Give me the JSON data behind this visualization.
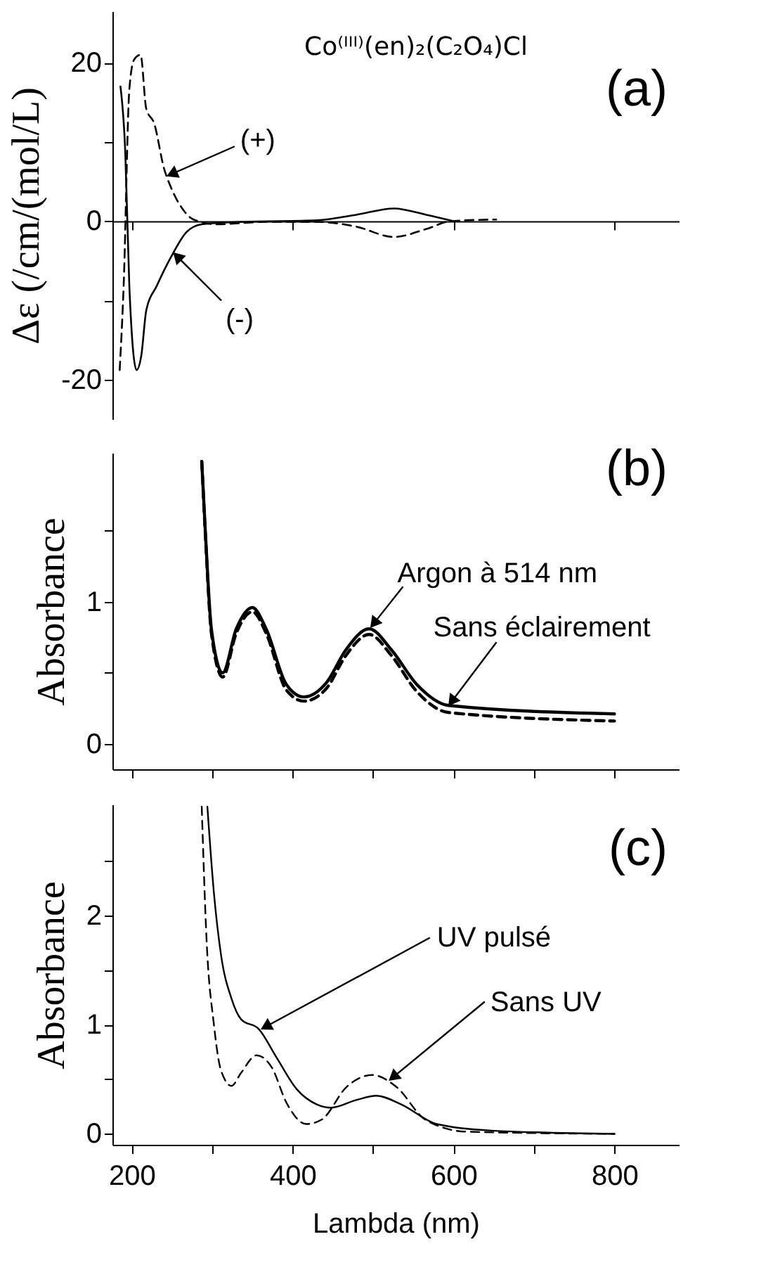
{
  "chart_data": [
    {
      "type": "line",
      "title": "Co⁽ᴵᴵᴵ⁾(en)₂(C₂O₄)Cl",
      "ylabel": "Δε (/cm/(mol/L)",
      "xlim": [
        176,
        880
      ],
      "ylim": [
        -25,
        26.5
      ],
      "xticks": [
        200,
        400,
        600,
        800
      ],
      "yticks": [
        -20,
        {
          "value": -10,
          "label": null
        },
        0,
        {
          "value": 10,
          "label": null
        },
        20
      ],
      "tick_labels": "y",
      "series": [
        {
          "color": "#000000",
          "line_style": "dashed",
          "x": [
            185,
            190,
            197,
            203,
            211,
            218,
            228,
            240,
            249,
            262,
            277,
            305,
            367,
            430,
            479,
            526,
            566,
            597,
            653
          ],
          "values": [
            -18.8,
            -8,
            16.6,
            20.4,
            21,
            14.2,
            12.3,
            6.7,
            4.2,
            1.7,
            0.2,
            -0.4,
            -0.1,
            -0.1,
            -0.7,
            -2,
            -1,
            0,
            0.2
          ]
        },
        {
          "color": "#000000",
          "line_style": "solid",
          "x": [
            186,
            192,
            197,
            206,
            212,
            218,
            231,
            249,
            268,
            287,
            336,
            430,
            479,
            526,
            566,
            600
          ],
          "values": [
            17,
            8.6,
            -8.2,
            -18.8,
            -16.9,
            -11.3,
            -8.2,
            -4.5,
            -1.4,
            -0.4,
            -0.1,
            0.1,
            0.8,
            1.6,
            0.8,
            0
          ]
        }
      ],
      "annotations": [
        "(a)",
        {
          "text": "(+)",
          "x": 244,
          "y": 5.7
        },
        {
          "text": "(-)",
          "x": 252,
          "y": -4.0
        }
      ]
    },
    {
      "type": "line",
      "ylabel": "Absorbance",
      "xlim": [
        176,
        880
      ],
      "ylim": [
        -0.18,
        2.05
      ],
      "xticks": [
        200,
        300,
        400,
        500,
        600,
        700,
        800
      ],
      "yticks": [
        0,
        {
          "value": 0.5,
          "label": null
        },
        1,
        {
          "value": 1.5,
          "label": null
        }
      ],
      "tick_labels": "y",
      "series": [
        {
          "color": "#000000",
          "line_style": "solid",
          "x": [
            287,
            292,
            299,
            313,
            330,
            350,
            367,
            392,
            414,
            442,
            466,
            495,
            523,
            554,
            594,
            800
          ],
          "values": [
            1.99,
            1.44,
            0.81,
            0.5,
            0.81,
            0.96,
            0.81,
            0.42,
            0.33,
            0.43,
            0.66,
            0.81,
            0.66,
            0.42,
            0.27,
            0.21
          ]
        },
        {
          "color": "#000000",
          "line_style": "dashed",
          "x": [
            287,
            292,
            299,
            313,
            330,
            350,
            367,
            392,
            414,
            442,
            466,
            495,
            523,
            554,
            594,
            800
          ],
          "values": [
            1.99,
            1.42,
            0.78,
            0.47,
            0.78,
            0.93,
            0.78,
            0.38,
            0.3,
            0.39,
            0.62,
            0.77,
            0.62,
            0.37,
            0.22,
            0.16
          ]
        }
      ],
      "annotations": [
        "(b)",
        {
          "text": "Argon à 514 nm",
          "x": 497,
          "y": 0.82
        },
        {
          "text": "Sans éclairement",
          "x": 594,
          "y": 0.27
        }
      ]
    },
    {
      "type": "line",
      "ylabel": "Absorbance",
      "xlabel": "Lambda (nm)",
      "xlim": [
        176,
        880
      ],
      "ylim": [
        -0.1,
        3.02
      ],
      "xticks": [
        200,
        {
          "value": 300,
          "label": null
        },
        400,
        {
          "value": 500,
          "label": null
        },
        600,
        {
          "value": 700,
          "label": null
        },
        800
      ],
      "yticks": [
        0,
        {
          "value": 0.5,
          "label": null
        },
        1,
        {
          "value": 1.5,
          "label": null
        },
        2,
        {
          "value": 2.5,
          "label": null
        }
      ],
      "series": [
        {
          "color": "#000000",
          "line_style": "solid",
          "x": [
            294,
            302,
            311,
            324,
            336,
            358,
            380,
            405,
            430,
            448,
            479,
            504,
            535,
            579,
            647,
            800
          ],
          "values": [
            3.0,
            2.22,
            1.64,
            1.24,
            1.05,
            0.96,
            0.7,
            0.41,
            0.27,
            0.24,
            0.31,
            0.35,
            0.27,
            0.09,
            0.03,
            0.0
          ]
        },
        {
          "color": "#000000",
          "line_style": "dashed",
          "x": [
            287,
            293,
            302,
            311,
            324,
            336,
            355,
            374,
            392,
            417,
            436,
            467,
            499,
            529,
            565,
            616,
            800
          ],
          "values": [
            3.0,
            1.78,
            1.01,
            0.58,
            0.44,
            0.56,
            0.72,
            0.61,
            0.29,
            0.09,
            0.13,
            0.43,
            0.54,
            0.43,
            0.13,
            0.02,
            0.0
          ]
        }
      ],
      "annotations": [
        "(c)",
        {
          "text": "UV pulsé",
          "x": 361,
          "y": 0.96
        },
        {
          "text": "Sans UV",
          "x": 520,
          "y": 0.49
        }
      ]
    }
  ]
}
